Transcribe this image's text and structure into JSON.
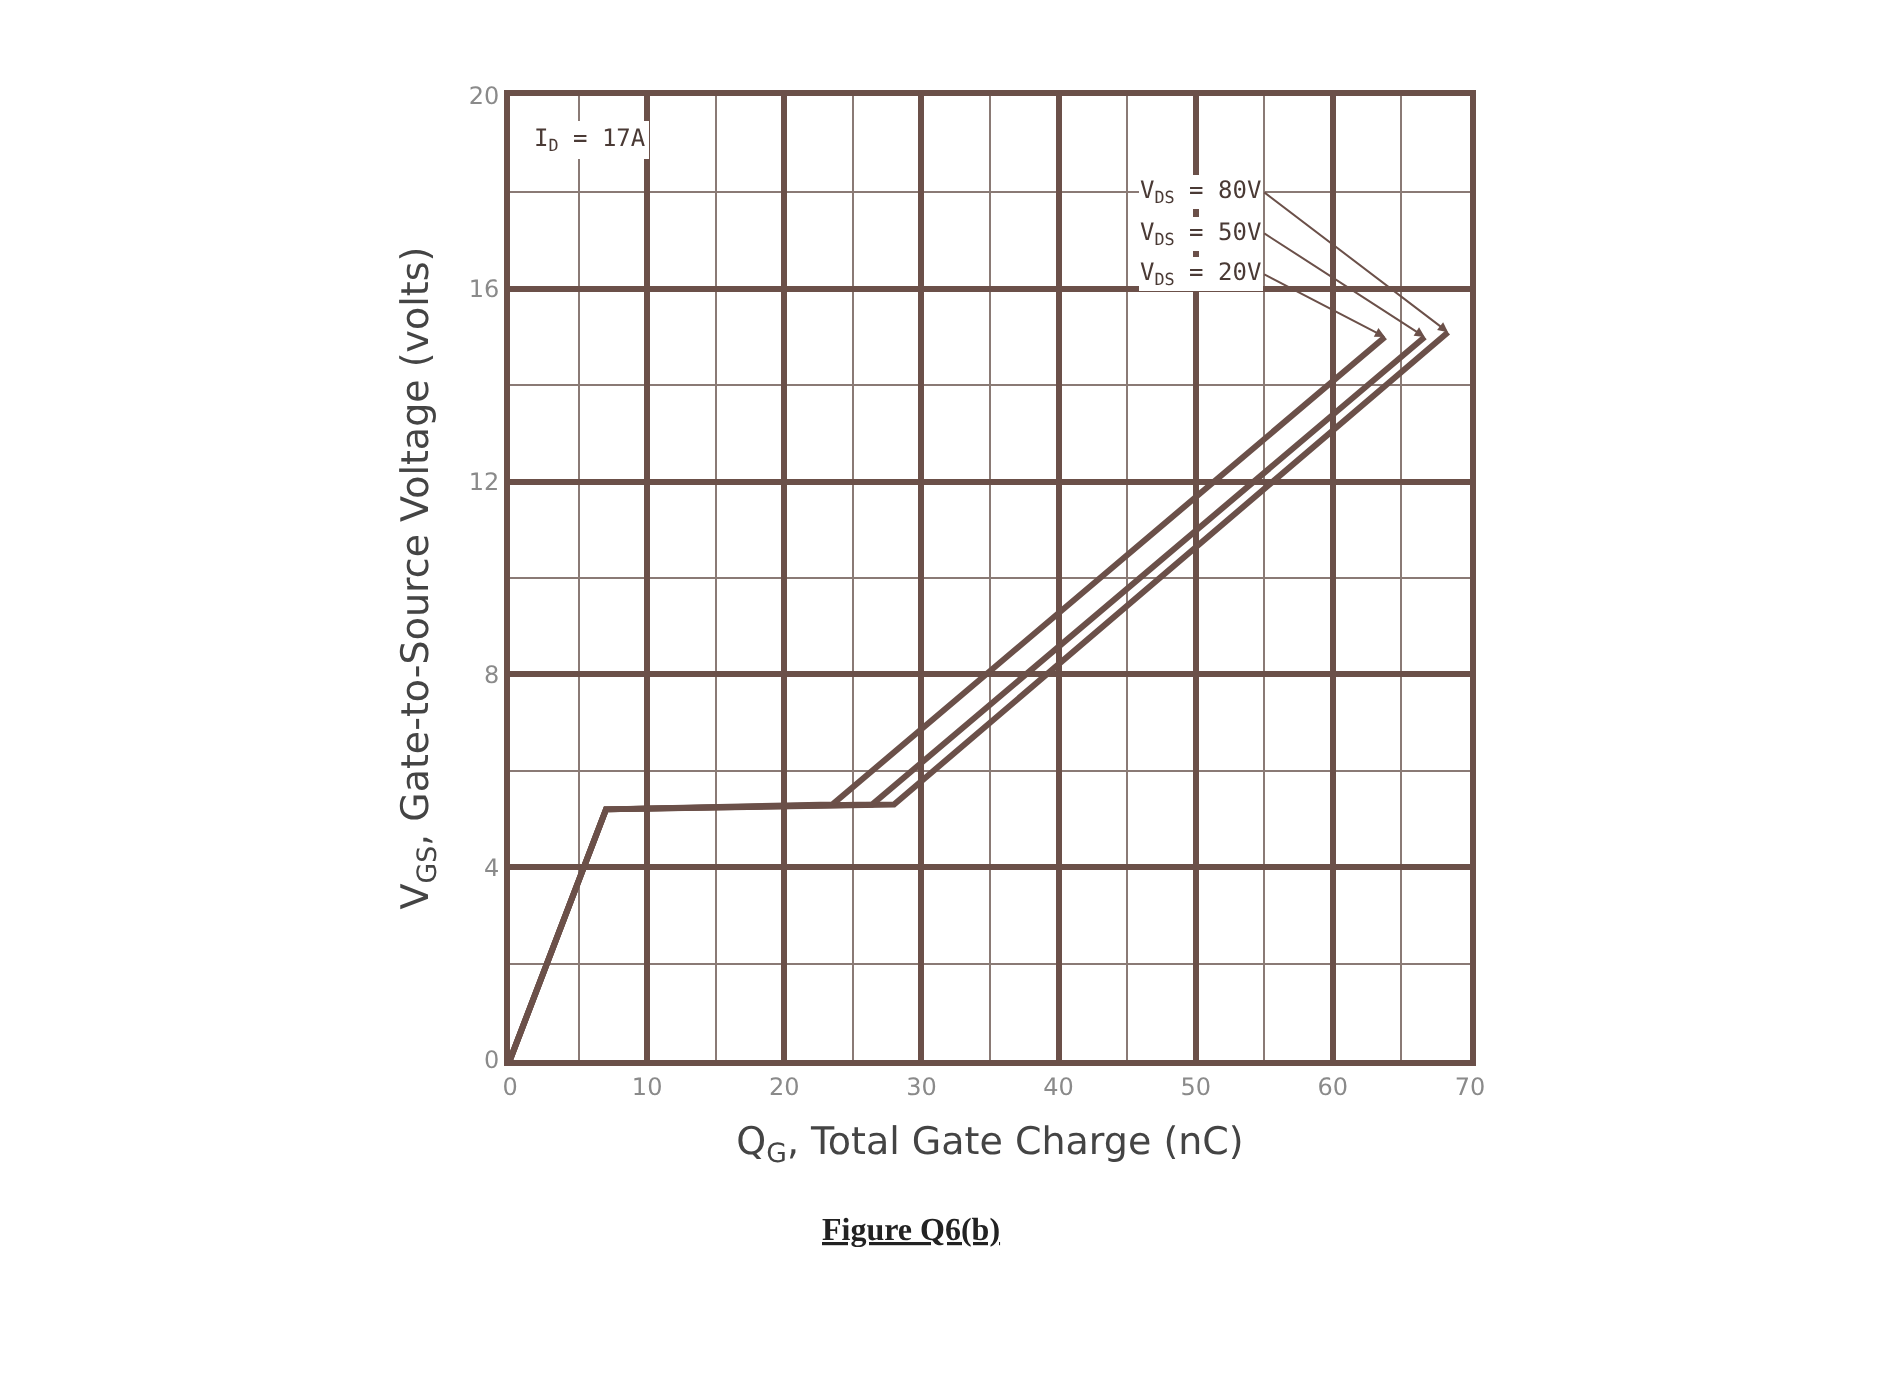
{
  "chart_data": {
    "type": "line",
    "xlabel": "Q$_{G}$, Total Gate Charge (nC)",
    "ylabel": "V$_{GS}$, Gate-to-Source Voltage (volts)",
    "xlim": [
      0,
      70
    ],
    "xticks": [
      0,
      10,
      20,
      30,
      40,
      50,
      60,
      70
    ],
    "ylim": [
      0,
      20
    ],
    "yticks": [
      0,
      4,
      8,
      12,
      16,
      20
    ],
    "grid": true,
    "legend": false,
    "marker": "none",
    "line_style": "solid",
    "annotations": [
      "I$_{D}$ = 17A",
      "Figure Q6(b)"
    ],
    "series": [
      {
        "name": "V$_{DS}$ = 80V",
        "color": "#6b5049",
        "x": [
          0,
          7,
          28.0,
          68.4
        ],
        "values": [
          0,
          5.2,
          5.3,
          15.1
        ]
      },
      {
        "name": "V$_{DS}$ = 50V",
        "color": "#6b5049",
        "x": [
          0,
          7,
          26.4,
          66.7
        ],
        "values": [
          0,
          5.2,
          5.3,
          15.0
        ]
      },
      {
        "name": "V$_{DS}$ = 20V",
        "color": "#6b5049",
        "x": [
          0,
          7,
          23.5,
          63.8
        ],
        "values": [
          0,
          5.2,
          5.3,
          15.0
        ]
      }
    ]
  }
}
